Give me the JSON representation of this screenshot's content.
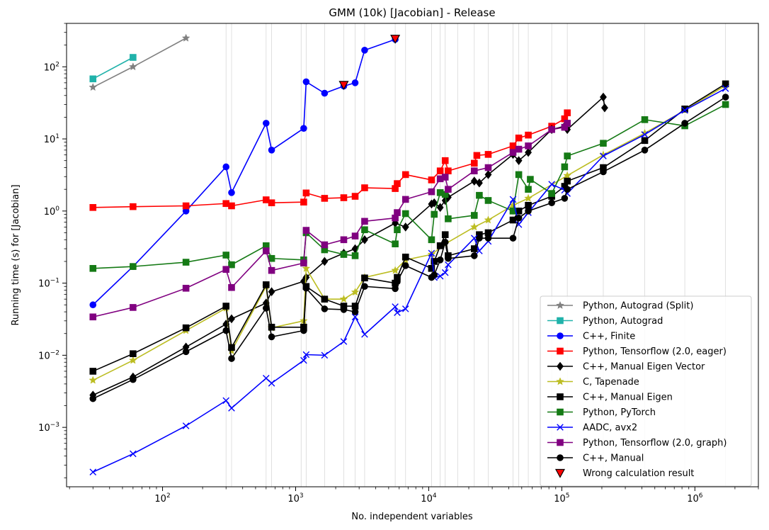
{
  "chart_data": {
    "type": "line",
    "title": "GMM (10k) [Jacobian] - Release",
    "xlabel": "No. independent variables",
    "ylabel": "Running time (s) for [Jacobian]",
    "xscale": "log",
    "yscale": "log",
    "xlim": [
      19,
      3000000
    ],
    "ylim": [
      0.00015,
      400
    ],
    "x_ticks": [
      {
        "value": 100,
        "base": "10",
        "exp": "2"
      },
      {
        "value": 1000,
        "base": "10",
        "exp": "3"
      },
      {
        "value": 10000,
        "base": "10",
        "exp": "4"
      },
      {
        "value": 100000,
        "base": "10",
        "exp": "5"
      },
      {
        "value": 1000000,
        "base": "10",
        "exp": "6"
      }
    ],
    "y_ticks": [
      {
        "value": 0.001,
        "base": "10",
        "exp": "−3"
      },
      {
        "value": 0.01,
        "base": "10",
        "exp": "−2"
      },
      {
        "value": 0.1,
        "base": "10",
        "exp": "−1"
      },
      {
        "value": 1,
        "base": "10",
        "exp": "0"
      },
      {
        "value": 10,
        "base": "10",
        "exp": "1"
      },
      {
        "value": 100,
        "base": "10",
        "exp": "2"
      }
    ],
    "vertical_gridlines": [
      300,
      330,
      600,
      660,
      1100,
      1200,
      1650,
      2300,
      2800,
      3300,
      5600,
      6700,
      10500,
      12200,
      13300,
      16500,
      22000,
      28000,
      43000,
      47500,
      56000,
      84000,
      110000,
      205000,
      420000,
      840000,
      1700000
    ],
    "legend_position": "lower right",
    "series": [
      {
        "name": "Python, Autograd (Split)",
        "color": "#808080",
        "marker": "star",
        "x": [
          30,
          60,
          150
        ],
        "y": [
          52,
          100,
          250
        ]
      },
      {
        "name": "Python, Autograd",
        "color": "#20b2aa",
        "marker": "square",
        "x": [
          30,
          60
        ],
        "y": [
          68,
          135
        ]
      },
      {
        "name": "C++, Finite",
        "color": "#0000ff",
        "marker": "circle",
        "x": [
          30,
          60,
          150,
          300,
          330,
          600,
          660,
          1150,
          1200,
          1650,
          2300,
          2800,
          3300,
          5600
        ],
        "y": [
          0.05,
          0.17,
          1.0,
          4.1,
          1.8,
          16.5,
          7.0,
          14.0,
          62,
          43,
          54,
          60,
          170,
          240
        ]
      },
      {
        "name": "Python, Tensorflow (2.0, eager)",
        "color": "#ff0000",
        "marker": "square",
        "x": [
          30,
          60,
          150,
          300,
          330,
          600,
          660,
          1150,
          1200,
          1650,
          2300,
          2800,
          3300,
          5600,
          5800,
          6700,
          10500,
          12200,
          13300,
          14000,
          22000,
          23000,
          28000,
          43000,
          47500,
          56000,
          84000,
          105000,
          110000
        ],
        "y": [
          1.12,
          1.15,
          1.18,
          1.27,
          1.18,
          1.43,
          1.3,
          1.33,
          1.78,
          1.5,
          1.53,
          1.6,
          2.1,
          2.05,
          2.4,
          3.2,
          2.7,
          3.6,
          5.0,
          3.6,
          4.6,
          5.9,
          6.1,
          8.0,
          10.3,
          11.3,
          15.0,
          19.0,
          23.0
        ]
      },
      {
        "name": "C++, Manual Eigen Vector",
        "color": "#000000",
        "marker": "diamond",
        "x": [
          30,
          60,
          150,
          300,
          330,
          600,
          660,
          1150,
          1200,
          1650,
          2300,
          2800,
          3300,
          5600,
          6700,
          10500,
          11000,
          12200,
          13300,
          14000,
          22000,
          24000,
          28000,
          43000,
          47500,
          56000,
          84000,
          105000,
          110000,
          205000,
          210000
        ],
        "y": [
          0.0028,
          0.005,
          0.013,
          0.027,
          0.032,
          0.053,
          0.076,
          0.106,
          0.12,
          0.2,
          0.26,
          0.3,
          0.4,
          0.68,
          0.6,
          1.25,
          1.3,
          1.12,
          1.4,
          1.55,
          2.6,
          2.45,
          3.2,
          6.1,
          5.0,
          6.5,
          13.5,
          15.0,
          13.5,
          38.0,
          27.0
        ]
      },
      {
        "name": "C, Tapenade",
        "color": "#bcbd22",
        "marker": "star",
        "x": [
          30,
          60,
          150,
          300,
          330,
          600,
          660,
          1150,
          1200,
          1650,
          2300,
          2800,
          3300,
          5600,
          6700,
          10500,
          13300,
          22000,
          28000,
          43000,
          56000,
          110000,
          205000,
          420000,
          840000,
          1700000
        ],
        "y": [
          0.0045,
          0.0085,
          0.022,
          0.045,
          0.0115,
          0.09,
          0.024,
          0.03,
          0.16,
          0.06,
          0.06,
          0.075,
          0.12,
          0.15,
          0.21,
          0.25,
          0.35,
          0.6,
          0.75,
          1.2,
          1.5,
          3.1,
          6.0,
          12.0,
          25.0,
          55.0
        ]
      },
      {
        "name": "C++, Manual Eigen",
        "color": "#000000",
        "marker": "square",
        "x": [
          30,
          60,
          150,
          300,
          330,
          600,
          660,
          1150,
          1200,
          1650,
          2300,
          2800,
          3300,
          5600,
          5800,
          6700,
          10500,
          11000,
          12200,
          13300,
          14000,
          22000,
          24000,
          28000,
          43000,
          47500,
          56000,
          84000,
          105000,
          110000,
          205000,
          420000,
          840000,
          1700000
        ],
        "y": [
          0.006,
          0.0105,
          0.024,
          0.048,
          0.0128,
          0.095,
          0.0245,
          0.0245,
          0.09,
          0.06,
          0.048,
          0.048,
          0.118,
          0.1,
          0.12,
          0.23,
          0.16,
          0.2,
          0.33,
          0.47,
          0.24,
          0.3,
          0.47,
          0.5,
          0.75,
          1.0,
          1.2,
          1.6,
          2.2,
          2.6,
          4.0,
          9.5,
          26.0,
          58.0
        ]
      },
      {
        "name": "Python, PyTorch",
        "color": "#157a15",
        "marker": "square",
        "x": [
          30,
          60,
          150,
          300,
          330,
          600,
          660,
          1150,
          1200,
          1650,
          2300,
          2800,
          3300,
          5600,
          5800,
          6700,
          10500,
          11000,
          12200,
          13300,
          14000,
          22000,
          24000,
          28000,
          43000,
          47500,
          56000,
          58000,
          84000,
          105000,
          110000,
          205000,
          420000,
          840000,
          1700000
        ],
        "y": [
          0.16,
          0.17,
          0.195,
          0.245,
          0.18,
          0.33,
          0.22,
          0.21,
          0.5,
          0.29,
          0.25,
          0.24,
          0.55,
          0.35,
          0.55,
          0.92,
          0.4,
          0.9,
          1.8,
          1.7,
          0.78,
          0.87,
          1.65,
          1.4,
          1.0,
          3.2,
          2.0,
          2.75,
          1.75,
          4.1,
          5.8,
          8.7,
          18.5,
          15.2,
          30.0
        ]
      },
      {
        "name": "AADC, avx2",
        "color": "#0000ff",
        "marker": "x",
        "x": [
          30,
          60,
          150,
          300,
          330,
          600,
          660,
          1150,
          1200,
          1650,
          2300,
          2800,
          3300,
          5600,
          5800,
          6700,
          10500,
          11000,
          12200,
          13300,
          14000,
          22000,
          24000,
          28000,
          43000,
          47500,
          56000,
          84000,
          105000,
          110000,
          205000,
          420000,
          840000,
          1700000
        ],
        "y": [
          0.00024,
          0.00043,
          0.00105,
          0.00235,
          0.00185,
          0.0048,
          0.0041,
          0.0085,
          0.0102,
          0.01,
          0.0155,
          0.034,
          0.0195,
          0.047,
          0.039,
          0.044,
          0.26,
          0.12,
          0.125,
          0.14,
          0.18,
          0.42,
          0.28,
          0.38,
          1.45,
          0.65,
          0.95,
          2.35,
          1.95,
          1.75,
          5.8,
          11.5,
          25.0,
          50.0
        ]
      },
      {
        "name": "Python, Tensorflow (2.0, graph)",
        "color": "#800080",
        "marker": "square",
        "x": [
          30,
          60,
          150,
          300,
          330,
          600,
          660,
          1150,
          1200,
          1650,
          2300,
          2800,
          3300,
          5600,
          5800,
          6700,
          10500,
          12200,
          13300,
          14000,
          22000,
          28000,
          43000,
          47500,
          56000,
          84000,
          105000,
          110000
        ],
        "y": [
          0.034,
          0.046,
          0.085,
          0.155,
          0.087,
          0.28,
          0.15,
          0.19,
          0.54,
          0.34,
          0.4,
          0.45,
          0.72,
          0.8,
          0.95,
          1.45,
          1.85,
          2.8,
          2.95,
          2.0,
          3.6,
          4.0,
          6.5,
          7.2,
          8.0,
          13.5,
          14.5,
          16.5
        ]
      },
      {
        "name": "C++, Manual",
        "color": "#000000",
        "marker": "circle",
        "x": [
          30,
          60,
          150,
          300,
          330,
          600,
          660,
          1150,
          1200,
          1650,
          2300,
          2800,
          3300,
          5600,
          5800,
          6700,
          10500,
          11000,
          12200,
          13300,
          14000,
          22000,
          24000,
          28000,
          43000,
          47500,
          56000,
          84000,
          105000,
          110000,
          205000,
          420000,
          840000,
          1700000
        ],
        "y": [
          0.0025,
          0.0046,
          0.0112,
          0.022,
          0.009,
          0.045,
          0.018,
          0.022,
          0.085,
          0.044,
          0.043,
          0.04,
          0.09,
          0.084,
          0.105,
          0.175,
          0.12,
          0.13,
          0.21,
          0.37,
          0.22,
          0.24,
          0.42,
          0.42,
          0.42,
          0.8,
          1.0,
          1.3,
          1.5,
          2.0,
          3.5,
          7.0,
          16.5,
          38.0
        ]
      },
      {
        "name": "Wrong calculation result",
        "color": "#ff0000",
        "marker": "triangle-down",
        "scatter": true,
        "x": [
          2300,
          5600
        ],
        "y": [
          56,
          245
        ]
      }
    ]
  }
}
